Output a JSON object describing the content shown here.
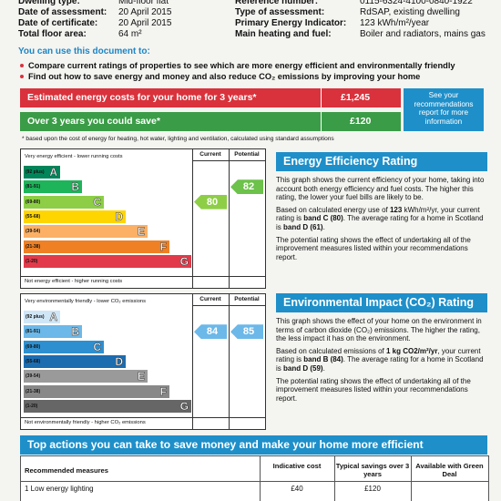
{
  "header": {
    "left": [
      {
        "label": "Dwelling type:",
        "value": "Mid-floor flat"
      },
      {
        "label": "Date of assessment:",
        "value": "20 April 2015"
      },
      {
        "label": "Date of certificate:",
        "value": "20 April 2015"
      },
      {
        "label": "Total floor area:",
        "value": "64 m²"
      }
    ],
    "right": [
      {
        "label": "Reference number:",
        "value": "0115-6324-4100-0840-1922"
      },
      {
        "label": "Type of assessment:",
        "value": "RdSAP, existing dwelling"
      },
      {
        "label": "Primary Energy Indicator:",
        "value": "123 kWh/m²/year"
      },
      {
        "label": "Main heating and fuel:",
        "value": "Boiler and radiators, mains gas"
      }
    ]
  },
  "intro": {
    "title": "You can use this document to:",
    "bullets": [
      "Compare current ratings of properties to see which are more energy efficient and environmentally friendly",
      "Find out how to save energy and money and also reduce CO₂ emissions by improving your home"
    ]
  },
  "costs": {
    "estimated_label": "Estimated energy costs for your home for 3 years*",
    "estimated_value": "£1,245",
    "saving_label": "Over 3 years you could save*",
    "saving_value": "£120",
    "side_note": "See your recommendations report for more information",
    "footnote": "* based upon the cost of energy for heating, hot water, lighting and ventilation, calculated using standard assumptions"
  },
  "energy_rating": {
    "scale_top": "Very energy efficient - lower running costs",
    "scale_bottom": "Not energy efficient - higher running costs",
    "current_heading": "Current",
    "potential_heading": "Potential",
    "bands": [
      {
        "range": "(92 plus)",
        "letter": "A",
        "color": "#00855a"
      },
      {
        "range": "(81-91)",
        "letter": "B",
        "color": "#1db45a"
      },
      {
        "range": "(69-80)",
        "letter": "C",
        "color": "#8dce46"
      },
      {
        "range": "(55-68)",
        "letter": "D",
        "color": "#ffd500"
      },
      {
        "range": "(39-54)",
        "letter": "E",
        "color": "#fbb066"
      },
      {
        "range": "(21-38)",
        "letter": "F",
        "color": "#ef8023"
      },
      {
        "range": "(1-20)",
        "letter": "G",
        "color": "#e23a4a"
      }
    ],
    "current": 80,
    "potential": 82,
    "current_color": "#8dce46",
    "potential_color": "#6cc24a",
    "title": "Energy Efficiency Rating",
    "paragraphs": [
      [
        "This graph shows the current efficiency of your home, taking into account both energy efficiency and fuel costs. The higher this rating, the lower your fuel bills are likely to be."
      ],
      [
        "Based on calculated energy use of ",
        "123",
        " kWh/m²/yr, your current rating is ",
        "band C (80)",
        ". The average rating for a home in Scotland is ",
        "band D (61)",
        "."
      ],
      [
        "The potential rating shows the effect of undertaking all of the improvement measures listed within your recommendations report."
      ]
    ]
  },
  "environmental_rating": {
    "scale_top": "Very environmentally friendly - lower CO₂ emissions",
    "scale_bottom": "Not environmentally friendly - higher CO₂ emissions",
    "current_heading": "Current",
    "potential_heading": "Potential",
    "bands": [
      {
        "range": "(92 plus)",
        "letter": "A",
        "color": "#cfe6f6"
      },
      {
        "range": "(81-91)",
        "letter": "B",
        "color": "#6cb8e8"
      },
      {
        "range": "(69-80)",
        "letter": "C",
        "color": "#2e8fd0"
      },
      {
        "range": "(55-68)",
        "letter": "D",
        "color": "#1c6cb0"
      },
      {
        "range": "(39-54)",
        "letter": "E",
        "color": "#9a9a9a"
      },
      {
        "range": "(21-38)",
        "letter": "F",
        "color": "#888888"
      },
      {
        "range": "(1-20)",
        "letter": "G",
        "color": "#666666"
      }
    ],
    "current": 84,
    "potential": 85,
    "current_color": "#6cb8e8",
    "potential_color": "#6cb8e8",
    "title": "Environmental Impact (CO₂) Rating",
    "paragraphs": [
      [
        "This graph shows the effect of your home on the environment in terms of carbon dioxide (CO₂) emissions. The higher the rating, the less impact it has on the environment."
      ],
      [
        "Based on calculated emissions of ",
        "1 kg CO2/m²/yr",
        ", your current rating is ",
        "band B (84)",
        ". The average rating for a home in Scotland is ",
        "band D (59)",
        "."
      ],
      [
        "The potential rating shows the effect of undertaking all of the improvement measures listed within your recommendations report."
      ]
    ]
  },
  "actions": {
    "title": "Top actions you can take to save money and make your home more efficient",
    "columns": [
      "Recommended measures",
      "Indicative cost",
      "Typical savings over 3 years",
      "Available with Green Deal"
    ],
    "rows": [
      [
        "1 Low energy lighting",
        "£40",
        "£120"
      ]
    ]
  }
}
